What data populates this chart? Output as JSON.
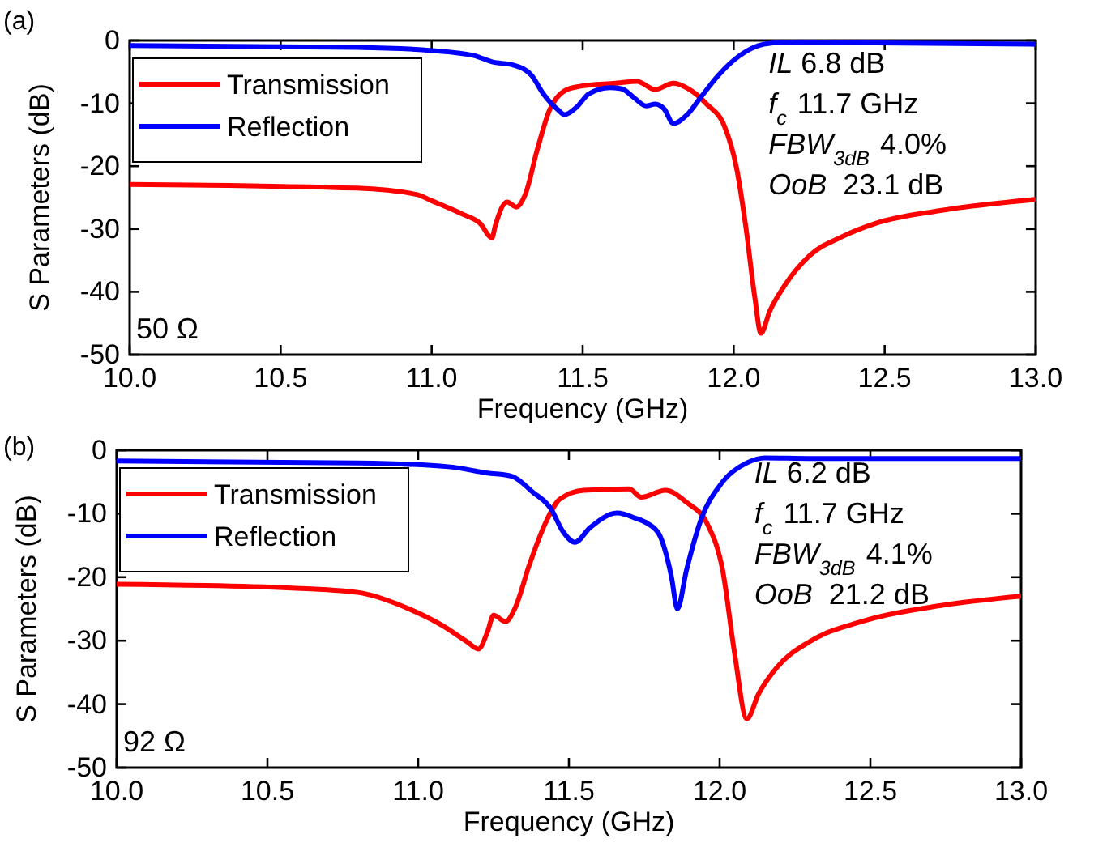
{
  "chart_data": [
    {
      "type": "line",
      "xlabel": "Frequency  (GHz)",
      "ylabel": "S Parameters (dB)",
      "xlim": [
        10,
        13
      ],
      "ylim": [
        -50,
        0
      ],
      "xticks": [
        {
          "value": 10,
          "label": "10.0"
        },
        10.5,
        {
          "value": 11,
          "label": "11.0"
        },
        11.5,
        {
          "value": 12,
          "label": "12.0"
        },
        12.5,
        {
          "value": 13,
          "label": "13.0"
        }
      ],
      "yticks": [
        -50,
        -40,
        -30,
        -20,
        -10,
        0
      ],
      "legend": "top left",
      "grid": false,
      "annotations": [
        "(a)",
        "50 Ω",
        "IL 6.8 dB",
        "f$_{c}$ 11.7 GHz",
        "FBW$_{3dB}$ 4.0%",
        "OoB  23.1 dB"
      ],
      "series": [
        {
          "name": "Transmission",
          "color": "#ff0000",
          "x": [
            10,
            10.75,
            10.95,
            11.0,
            11.1,
            11.16,
            11.2,
            11.21,
            11.25,
            11.28,
            11.31,
            11.35,
            11.39,
            11.44,
            11.49,
            11.61,
            11.68,
            11.74,
            11.8,
            11.86,
            11.91,
            11.97,
            12.01,
            12.04,
            12.07,
            12.09,
            12.12,
            12.17,
            12.25,
            12.36,
            12.47,
            12.68,
            13
          ],
          "values": [
            -22.9,
            -23.5,
            -24.5,
            -25.5,
            -27.6,
            -29.1,
            -31.4,
            -29.6,
            -25.7,
            -26.5,
            -24.5,
            -17.3,
            -11.1,
            -8.0,
            -7.3,
            -6.8,
            -6.5,
            -7.8,
            -6.8,
            -8.0,
            -10.1,
            -13.7,
            -20.4,
            -29.6,
            -40.9,
            -46.6,
            -43.0,
            -38.9,
            -34.3,
            -31.2,
            -29.1,
            -27.1,
            -25.3
          ]
        },
        {
          "name": "Reflection",
          "color": "#0000ff",
          "x": [
            10,
            10.75,
            11.0,
            11.14,
            11.2,
            11.27,
            11.33,
            11.37,
            11.42,
            11.44,
            11.48,
            11.52,
            11.59,
            11.63,
            11.67,
            11.71,
            11.74,
            11.77,
            11.8,
            11.85,
            11.89,
            11.95,
            12.02,
            12.1,
            12.17,
            12.47,
            13
          ],
          "values": [
            -0.8,
            -1.1,
            -1.6,
            -2.4,
            -3.4,
            -3.9,
            -5.5,
            -8.5,
            -11.1,
            -11.8,
            -10.6,
            -8.5,
            -7.5,
            -7.7,
            -9.1,
            -10.4,
            -10.1,
            -10.9,
            -13.2,
            -11.6,
            -9.1,
            -5.5,
            -2.4,
            -0.6,
            -0.3,
            -0.4,
            -0.6
          ]
        }
      ]
    },
    {
      "type": "line",
      "xlabel": "Frequency  (GHz)",
      "ylabel": "S Parameters (dB)",
      "xlim": [
        10,
        13
      ],
      "ylim": [
        -50,
        0
      ],
      "xticks": [
        {
          "value": 10,
          "label": "10.0"
        },
        10.5,
        {
          "value": 11,
          "label": "11.0"
        },
        11.5,
        {
          "value": 12,
          "label": "12.0"
        },
        12.5,
        {
          "value": 13,
          "label": "13.0"
        }
      ],
      "yticks": [
        -50,
        -40,
        -30,
        -20,
        -10,
        0
      ],
      "legend": "top left",
      "grid": false,
      "annotations": [
        "(b)",
        "92 Ω",
        "IL 6.2 dB",
        "f$_{c}$ 11.7 GHz",
        "FBW$_{3dB}$ 4.1%",
        "OoB  21.2 dB"
      ],
      "series": [
        {
          "name": "Transmission",
          "color": "#ff0000",
          "x": [
            10,
            10.58,
            10.8,
            10.97,
            11.08,
            11.16,
            11.2,
            11.23,
            11.25,
            11.29,
            11.32,
            11.37,
            11.42,
            11.47,
            11.55,
            11.7,
            11.74,
            11.82,
            11.89,
            11.96,
            12.01,
            12.05,
            12.09,
            12.13,
            12.19,
            12.3,
            12.47,
            12.73,
            13
          ],
          "values": [
            -21.1,
            -21.7,
            -22.4,
            -25.0,
            -27.6,
            -30.1,
            -31.3,
            -28.6,
            -26.0,
            -27.0,
            -25.0,
            -17.9,
            -11.7,
            -7.7,
            -6.3,
            -6.1,
            -7.4,
            -6.3,
            -8.2,
            -11.7,
            -18.9,
            -32.1,
            -42.3,
            -38.3,
            -34.2,
            -30.1,
            -27.0,
            -24.5,
            -23.0
          ]
        },
        {
          "name": "Reflection",
          "color": "#0000ff",
          "x": [
            10,
            10.8,
            11.1,
            11.23,
            11.31,
            11.38,
            11.44,
            11.48,
            11.52,
            11.57,
            11.66,
            11.72,
            11.76,
            11.8,
            11.84,
            11.86,
            11.89,
            11.94,
            12.0,
            12.09,
            12.15,
            12.3,
            13
          ],
          "values": [
            -1.7,
            -2.0,
            -2.6,
            -3.6,
            -4.1,
            -6.6,
            -9.2,
            -12.8,
            -14.5,
            -12.2,
            -9.9,
            -10.7,
            -11.5,
            -13.3,
            -19.9,
            -25.0,
            -18.9,
            -10.7,
            -5.6,
            -2.0,
            -1.2,
            -1.3,
            -1.3
          ]
        }
      ]
    }
  ]
}
